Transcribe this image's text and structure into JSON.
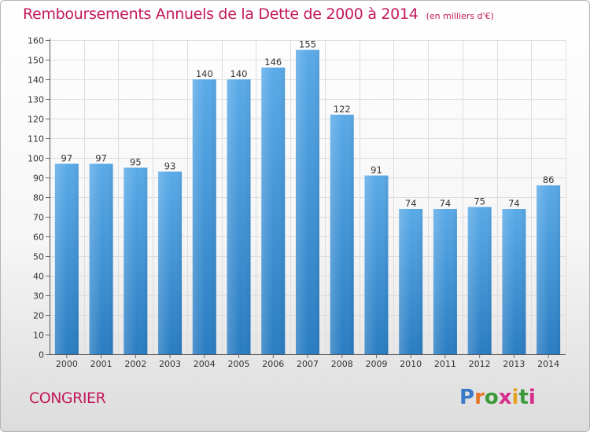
{
  "chart_data": {
    "type": "bar",
    "title": "Remboursements Annuels de la Dette de 2000 à 2014",
    "subtitle": "(en milliers d'€)",
    "categories": [
      "2000",
      "2001",
      "2002",
      "2003",
      "2004",
      "2005",
      "2006",
      "2007",
      "2008",
      "2009",
      "2010",
      "2011",
      "2012",
      "2013",
      "2014"
    ],
    "values": [
      97,
      97,
      95,
      93,
      140,
      140,
      146,
      155,
      122,
      91,
      74,
      74,
      75,
      74,
      86
    ],
    "ylim": [
      0,
      160
    ],
    "ytick_step": 10,
    "grid": true,
    "xlabel": "",
    "ylabel": "",
    "bar_color_top": "#5aaae8",
    "bar_color_bottom": "#2a7dc2"
  },
  "footer": {
    "commune": "CONGRIER",
    "logo_letters": [
      "P",
      "r",
      "o",
      "x",
      "i",
      "t",
      "i"
    ],
    "logo_colors": [
      "#3a78c8",
      "#e8742a",
      "#3a9a3a",
      "#d62c8c",
      "#e8a020",
      "#3a9a3a",
      "#d62c8c"
    ]
  },
  "colors": {
    "title": "#c2185b",
    "grid": "#dddddd"
  }
}
